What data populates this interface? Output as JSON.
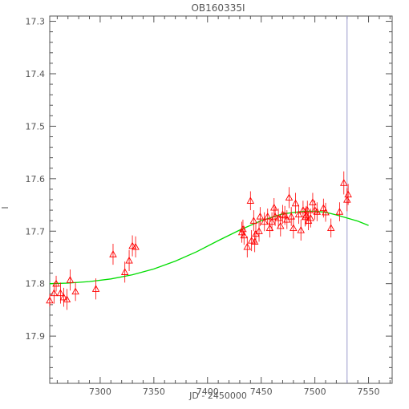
{
  "chart_data": {
    "type": "scatter",
    "title": "OB160335I",
    "xlabel": "JD - 2450000",
    "ylabel": "I",
    "xlim": [
      7253,
      7572
    ],
    "ylim": [
      17.99,
      17.29
    ],
    "y_inverted": true,
    "x_ticks": [
      7300,
      7350,
      7400,
      7450,
      7500,
      7550
    ],
    "x_tick_labels": [
      "7300",
      "7350",
      "7400",
      "7450",
      "7500",
      "7550"
    ],
    "y_ticks": [
      17.3,
      17.4,
      17.5,
      17.6,
      17.7,
      17.8,
      17.9
    ],
    "y_tick_labels": [
      "17.3",
      "17.4",
      "17.5",
      "17.6",
      "17.7",
      "17.8",
      "17.9"
    ],
    "grid": false,
    "vertical_marker_x": 7530,
    "colors": {
      "points": "#ff0000",
      "model": "#00dd00",
      "marker_line": "#9999cc",
      "axes": "#555555"
    },
    "series": [
      {
        "marker": "open-triangle",
        "x": [
          7253,
          7257,
          7259,
          7263,
          7266,
          7269,
          7272,
          7277,
          7296,
          7312,
          7323,
          7327,
          7330,
          7333,
          7432,
          7433,
          7434,
          7437,
          7440,
          7441,
          7443,
          7444,
          7445,
          7448,
          7449,
          7453,
          7456,
          7458,
          7460,
          7462,
          7463,
          7466,
          7468,
          7470,
          7472,
          7474,
          7476,
          7478,
          7480,
          7482,
          7485,
          7487,
          7489,
          7491,
          7492,
          7493,
          7494,
          7496,
          7498,
          7500,
          7502,
          7508,
          7510,
          7515,
          7523,
          7527,
          7530,
          7531
        ],
        "y": [
          17.832,
          17.818,
          17.8,
          17.818,
          17.826,
          17.83,
          17.793,
          17.815,
          17.81,
          17.744,
          17.778,
          17.756,
          17.728,
          17.73,
          17.702,
          17.696,
          17.708,
          17.73,
          17.642,
          17.718,
          17.68,
          17.72,
          17.705,
          17.7,
          17.672,
          17.682,
          17.672,
          17.694,
          17.682,
          17.655,
          17.672,
          17.675,
          17.69,
          17.668,
          17.67,
          17.678,
          17.636,
          17.672,
          17.694,
          17.647,
          17.668,
          17.698,
          17.66,
          17.673,
          17.67,
          17.66,
          17.68,
          17.675,
          17.645,
          17.66,
          17.663,
          17.656,
          17.664,
          17.694,
          17.663,
          17.608,
          17.64,
          17.63
        ],
        "errors": [
          0.012,
          0.02,
          0.015,
          0.02,
          0.018,
          0.02,
          0.02,
          0.018,
          0.02,
          0.02,
          0.02,
          0.02,
          0.02,
          0.02,
          0.02,
          0.018,
          0.018,
          0.02,
          0.018,
          0.02,
          0.02,
          0.02,
          0.02,
          0.02,
          0.018,
          0.018,
          0.015,
          0.018,
          0.018,
          0.018,
          0.018,
          0.018,
          0.02,
          0.018,
          0.018,
          0.018,
          0.02,
          0.018,
          0.02,
          0.02,
          0.018,
          0.02,
          0.018,
          0.018,
          0.018,
          0.018,
          0.018,
          0.018,
          0.018,
          0.018,
          0.018,
          0.018,
          0.018,
          0.018,
          0.018,
          0.022,
          0.022,
          0.02
        ]
      },
      {
        "type": "line",
        "x": [
          7253,
          7270,
          7290,
          7310,
          7330,
          7350,
          7370,
          7390,
          7410,
          7430,
          7450,
          7470,
          7490,
          7500,
          7510,
          7520,
          7530,
          7540,
          7550
        ],
        "y": [
          17.8,
          17.799,
          17.796,
          17.791,
          17.783,
          17.772,
          17.757,
          17.739,
          17.718,
          17.698,
          17.68,
          17.667,
          17.662,
          17.662,
          17.664,
          17.669,
          17.675,
          17.681,
          17.689
        ]
      }
    ]
  }
}
